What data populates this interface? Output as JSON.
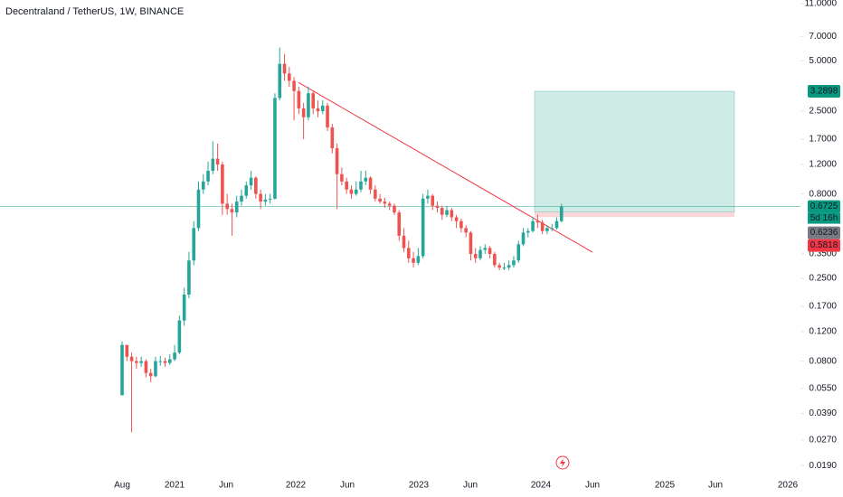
{
  "chart_data": {
    "type": "candlestick",
    "title": "Decentraland / TetherUS, 1W, BINANCE",
    "log_scale": true,
    "ylim": [
      0.0164,
      11.56
    ],
    "yticks": [
      {
        "value": 11,
        "label": "11.0000"
      },
      {
        "value": 7,
        "label": "7.0000"
      },
      {
        "value": 5,
        "label": "5.0000"
      },
      {
        "value": 2.5,
        "label": "2.5000"
      },
      {
        "value": 1.7,
        "label": "1.7000"
      },
      {
        "value": 1.2,
        "label": "1.2000"
      },
      {
        "value": 0.8,
        "label": "0.8000"
      },
      {
        "value": 0.35,
        "label": "0.3500"
      },
      {
        "value": 0.25,
        "label": "0.2500"
      },
      {
        "value": 0.17,
        "label": "0.1700"
      },
      {
        "value": 0.12,
        "label": "0.1200"
      },
      {
        "value": 0.08,
        "label": "0.0800"
      },
      {
        "value": 0.055,
        "label": "0.0550"
      },
      {
        "value": 0.039,
        "label": "0.0390"
      },
      {
        "value": 0.027,
        "label": "0.0270"
      },
      {
        "value": 0.019,
        "label": "0.0190"
      }
    ],
    "x_tick_labels": [
      "Aug",
      "2021",
      "Jun",
      "2022",
      "Jun",
      "2023",
      "Jun",
      "2024",
      "Jun",
      "2025",
      "Jun",
      "2026"
    ],
    "up_color": "#26a69a",
    "down_color": "#ef5350",
    "ohlc": [
      [
        0.05,
        0.105,
        0.05,
        0.1
      ],
      [
        0.1,
        0.1,
        0.08,
        0.085
      ],
      [
        0.085,
        0.09,
        0.03,
        0.08
      ],
      [
        0.08,
        0.085,
        0.072,
        0.078
      ],
      [
        0.078,
        0.085,
        0.074,
        0.08
      ],
      [
        0.08,
        0.082,
        0.064,
        0.068
      ],
      [
        0.068,
        0.072,
        0.06,
        0.065
      ],
      [
        0.065,
        0.085,
        0.064,
        0.08
      ],
      [
        0.08,
        0.086,
        0.075,
        0.08
      ],
      [
        0.08,
        0.084,
        0.074,
        0.078
      ],
      [
        0.078,
        0.088,
        0.076,
        0.082
      ],
      [
        0.082,
        0.1,
        0.08,
        0.09
      ],
      [
        0.09,
        0.15,
        0.088,
        0.14
      ],
      [
        0.14,
        0.22,
        0.13,
        0.2
      ],
      [
        0.2,
        0.36,
        0.19,
        0.32
      ],
      [
        0.32,
        0.55,
        0.3,
        0.5
      ],
      [
        0.5,
        0.95,
        0.48,
        0.85
      ],
      [
        0.85,
        1.05,
        0.8,
        0.95
      ],
      [
        0.95,
        1.25,
        0.9,
        1.1
      ],
      [
        1.1,
        1.65,
        1.05,
        1.3
      ],
      [
        1.3,
        1.6,
        1.1,
        1.2
      ],
      [
        1.2,
        1.25,
        0.6,
        0.7
      ],
      [
        0.7,
        0.8,
        0.6,
        0.65
      ],
      [
        0.65,
        0.7,
        0.45,
        0.62
      ],
      [
        0.62,
        0.78,
        0.58,
        0.72
      ],
      [
        0.72,
        0.85,
        0.68,
        0.78
      ],
      [
        0.78,
        0.95,
        0.75,
        0.9
      ],
      [
        0.9,
        1.1,
        0.85,
        1.0
      ],
      [
        1.0,
        1.02,
        0.75,
        0.8
      ],
      [
        0.8,
        0.85,
        0.65,
        0.72
      ],
      [
        0.72,
        0.8,
        0.68,
        0.74
      ],
      [
        0.74,
        0.8,
        0.7,
        0.75
      ],
      [
        0.75,
        3.2,
        0.74,
        3.0
      ],
      [
        3.0,
        6.0,
        2.9,
        4.8
      ],
      [
        4.8,
        5.5,
        3.8,
        4.2
      ],
      [
        4.2,
        4.6,
        3.5,
        3.8
      ],
      [
        3.8,
        4.0,
        2.2,
        3.3
      ],
      [
        3.3,
        3.5,
        2.4,
        2.6
      ],
      [
        2.6,
        2.8,
        1.7,
        2.3
      ],
      [
        2.3,
        3.5,
        2.2,
        3.2
      ],
      [
        3.2,
        3.3,
        2.4,
        2.6
      ],
      [
        2.6,
        2.9,
        2.3,
        2.5
      ],
      [
        2.5,
        2.9,
        2.4,
        2.7
      ],
      [
        2.7,
        2.8,
        1.9,
        2.0
      ],
      [
        2.0,
        2.1,
        1.4,
        1.5
      ],
      [
        1.5,
        1.6,
        0.65,
        1.05
      ],
      [
        1.05,
        1.15,
        0.9,
        0.95
      ],
      [
        0.95,
        1.0,
        0.8,
        0.85
      ],
      [
        0.85,
        0.9,
        0.75,
        0.8
      ],
      [
        0.8,
        0.95,
        0.78,
        0.85
      ],
      [
        0.85,
        1.1,
        0.82,
        0.95
      ],
      [
        0.95,
        1.1,
        0.9,
        1.0
      ],
      [
        1.0,
        1.02,
        0.8,
        0.85
      ],
      [
        0.85,
        0.9,
        0.72,
        0.75
      ],
      [
        0.75,
        0.8,
        0.7,
        0.72
      ],
      [
        0.72,
        0.76,
        0.66,
        0.7
      ],
      [
        0.7,
        0.72,
        0.64,
        0.68
      ],
      [
        0.68,
        0.7,
        0.6,
        0.62
      ],
      [
        0.62,
        0.64,
        0.42,
        0.45
      ],
      [
        0.45,
        0.5,
        0.36,
        0.38
      ],
      [
        0.38,
        0.42,
        0.31,
        0.33
      ],
      [
        0.33,
        0.36,
        0.29,
        0.31
      ],
      [
        0.31,
        0.38,
        0.3,
        0.34
      ],
      [
        0.34,
        0.8,
        0.33,
        0.75
      ],
      [
        0.75,
        0.85,
        0.7,
        0.78
      ],
      [
        0.78,
        0.8,
        0.64,
        0.68
      ],
      [
        0.68,
        0.72,
        0.62,
        0.66
      ],
      [
        0.66,
        0.68,
        0.56,
        0.6
      ],
      [
        0.6,
        0.68,
        0.58,
        0.64
      ],
      [
        0.64,
        0.66,
        0.55,
        0.58
      ],
      [
        0.58,
        0.6,
        0.5,
        0.55
      ],
      [
        0.55,
        0.57,
        0.47,
        0.5
      ],
      [
        0.5,
        0.52,
        0.44,
        0.47
      ],
      [
        0.47,
        0.48,
        0.32,
        0.35
      ],
      [
        0.35,
        0.38,
        0.31,
        0.33
      ],
      [
        0.33,
        0.39,
        0.32,
        0.37
      ],
      [
        0.37,
        0.4,
        0.35,
        0.38
      ],
      [
        0.38,
        0.39,
        0.33,
        0.35
      ],
      [
        0.35,
        0.36,
        0.29,
        0.3
      ],
      [
        0.3,
        0.31,
        0.28,
        0.29
      ],
      [
        0.29,
        0.31,
        0.28,
        0.29
      ],
      [
        0.29,
        0.32,
        0.28,
        0.3
      ],
      [
        0.3,
        0.34,
        0.29,
        0.32
      ],
      [
        0.32,
        0.42,
        0.31,
        0.4
      ],
      [
        0.4,
        0.5,
        0.39,
        0.47
      ],
      [
        0.47,
        0.5,
        0.44,
        0.48
      ],
      [
        0.48,
        0.58,
        0.47,
        0.55
      ],
      [
        0.55,
        0.6,
        0.5,
        0.54
      ],
      [
        0.54,
        0.56,
        0.46,
        0.48
      ],
      [
        0.48,
        0.52,
        0.46,
        0.5
      ],
      [
        0.5,
        0.53,
        0.48,
        0.5
      ],
      [
        0.5,
        0.58,
        0.49,
        0.55
      ],
      [
        0.55,
        0.7,
        0.54,
        0.6725
      ]
    ],
    "trendline": {
      "start": 3.71,
      "end": 0.359,
      "color": "#f23645"
    },
    "position": {
      "target": 3.2898,
      "entry": 0.6236,
      "stop": 0.5818
    },
    "price_tags": [
      {
        "value": 3.2898,
        "label": "3.2898",
        "color": "#089981"
      },
      {
        "value": 0.6725,
        "label": "0.6725",
        "color": "#089981"
      },
      {
        "value": 0.6236,
        "label": "0.6236",
        "color": "#787b86"
      },
      {
        "value": 0.5818,
        "label": "0.5818",
        "color": "#f23645"
      }
    ],
    "countdown": "5d 16h"
  }
}
